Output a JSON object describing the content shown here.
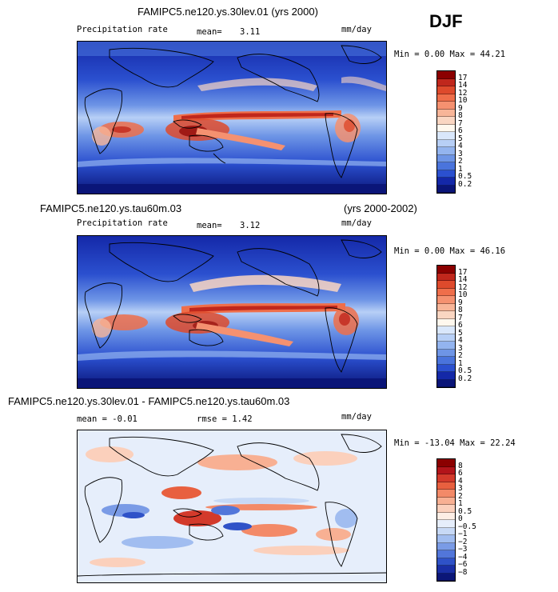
{
  "season": "DJF",
  "panels": [
    {
      "title": "FAMIPC5.ne120.ys.30lev.01 (yrs 2000)",
      "variable": "Precipitation rate",
      "mean_label": "mean=",
      "mean_value": "3.11",
      "units": "mm/day",
      "minmax": "Min =   0.00 Max =  44.21",
      "colorbar_labels": [
        "17",
        "14",
        "12",
        "10",
        "9",
        "8",
        "7",
        "6",
        "5",
        "4",
        "3",
        "2",
        "1",
        "0.5",
        "0.2"
      ],
      "colorbar_colors": [
        "#8b0000",
        "#c0271c",
        "#de4a2c",
        "#ef6e4a",
        "#f59170",
        "#f8b598",
        "#fad6c2",
        "#fff8ee",
        "#d9e7fb",
        "#b7cff6",
        "#93b4ef",
        "#6e95e6",
        "#4a74dc",
        "#2b50cf",
        "#1428a8",
        "#0a1578"
      ]
    },
    {
      "title_left": "FAMIPC5.ne120.ys.tau60m.03",
      "title_right": "(yrs 2000-2002)",
      "variable": "Precipitation rate",
      "mean_label": "mean=",
      "mean_value": "3.12",
      "units": "mm/day",
      "minmax": "Min =   0.00 Max =  46.16",
      "colorbar_labels": [
        "17",
        "14",
        "12",
        "10",
        "9",
        "8",
        "7",
        "6",
        "5",
        "4",
        "3",
        "2",
        "1",
        "0.5",
        "0.2"
      ],
      "colorbar_colors": [
        "#8b0000",
        "#c0271c",
        "#de4a2c",
        "#ef6e4a",
        "#f59170",
        "#f8b598",
        "#fad6c2",
        "#fff8ee",
        "#d9e7fb",
        "#b7cff6",
        "#93b4ef",
        "#6e95e6",
        "#4a74dc",
        "#2b50cf",
        "#1428a8",
        "#0a1578"
      ]
    },
    {
      "title": "FAMIPC5.ne120.ys.30lev.01 - FAMIPC5.ne120.ys.tau60m.03",
      "mean_text": "mean =  -0.01",
      "rmse_text": "rmse =   1.42",
      "units": "mm/day",
      "minmax": "Min = -13.04 Max =  22.24",
      "colorbar_labels": [
        "8",
        "6",
        "4",
        "3",
        "2",
        "1",
        "0.5",
        "0",
        "−0.5",
        "−1",
        "−2",
        "−3",
        "−4",
        "−6",
        "−8"
      ],
      "colorbar_colors": [
        "#8b0000",
        "#b3141a",
        "#d33a2b",
        "#e8603f",
        "#f38a68",
        "#f8b093",
        "#fbd0bc",
        "#fdeee5",
        "#e6eefb",
        "#c7d9f6",
        "#a1bdf0",
        "#7a9be6",
        "#5276da",
        "#2f52c8",
        "#1a2fa6",
        "#0b1678"
      ]
    }
  ]
}
